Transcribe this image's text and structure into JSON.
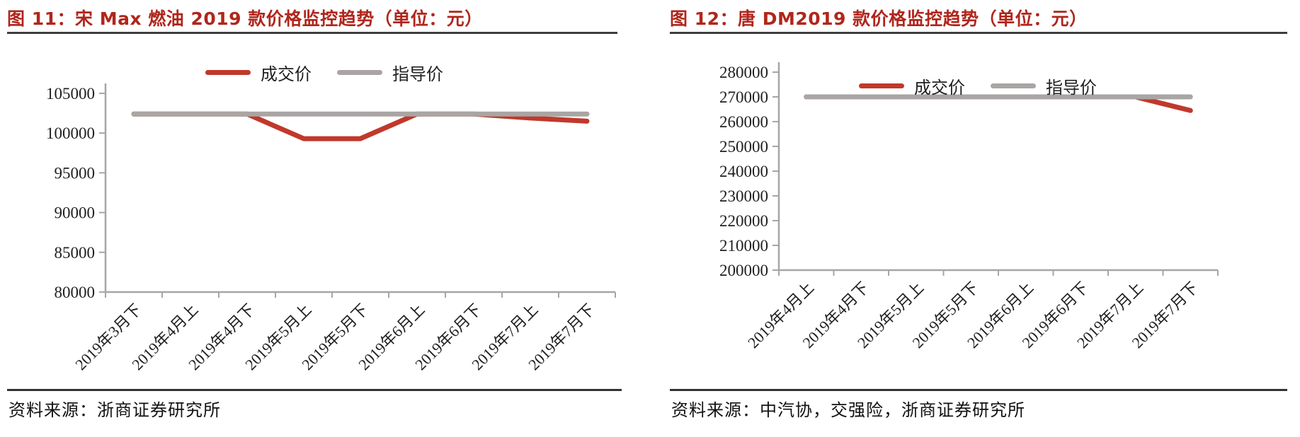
{
  "theme": {
    "title_color": "#b0261c",
    "axis_color": "#a6a6a6",
    "text_color": "#1f1f1f",
    "rule_color": "#3d3d3d",
    "deal_price_color": "#c0392b",
    "guide_price_color": "#a9a5a4"
  },
  "chart_data": [
    {
      "type": "line",
      "title": "图 11：宋 Max 燃油 2019 款价格监控趋势（单位：元）",
      "source": "资料来源：浙商证券研究所",
      "categories": [
        "2019年3月下",
        "2019年4月上",
        "2019年4月下",
        "2019年5月上",
        "2019年5月下",
        "2019年6月上",
        "2019年6月下",
        "2019年7月上",
        "2019年7月下"
      ],
      "series": [
        {
          "name": "成交价",
          "color": "#c0392b",
          "values": [
            102400,
            102400,
            102400,
            99300,
            99300,
            102400,
            102400,
            101900,
            101500
          ]
        },
        {
          "name": "指导价",
          "color": "#a9a5a4",
          "values": [
            102400,
            102400,
            102400,
            102400,
            102400,
            102400,
            102400,
            102400,
            102400
          ]
        }
      ],
      "ylim": [
        80000,
        105000
      ],
      "ytick_step": 5000,
      "xlabel": "",
      "ylabel": "",
      "grid": false,
      "legend_position": "top-center"
    },
    {
      "type": "line",
      "title": "图 12：唐 DM2019 款价格监控趋势（单位：元）",
      "source": "资料来源：中汽协，交强险，浙商证券研究所",
      "categories": [
        "2019年4月上",
        "2019年4月下",
        "2019年5月上",
        "2019年5月下",
        "2019年6月上",
        "2019年6月下",
        "2019年7月上",
        "2019年7月下"
      ],
      "series": [
        {
          "name": "成交价",
          "color": "#c0392b",
          "values": [
            270000,
            270000,
            270000,
            270000,
            270000,
            270000,
            270000,
            264500
          ]
        },
        {
          "name": "指导价",
          "color": "#a9a5a4",
          "values": [
            270000,
            270000,
            270000,
            270000,
            270000,
            270000,
            270000,
            270000
          ]
        }
      ],
      "ylim": [
        200000,
        280000
      ],
      "ytick_step": 10000,
      "xlabel": "",
      "ylabel": "",
      "grid": false,
      "legend_position": "inside-top"
    }
  ]
}
